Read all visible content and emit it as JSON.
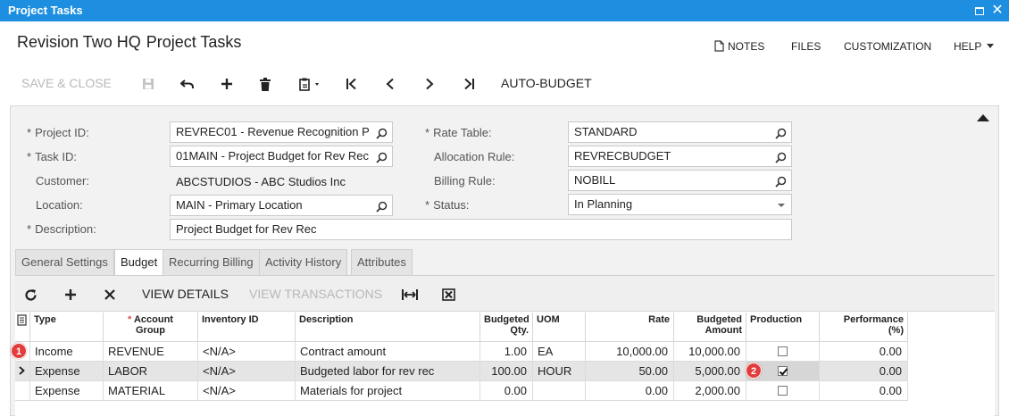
{
  "window": {
    "title": "Project Tasks"
  },
  "header": {
    "title_part1": "Revision Two HQ",
    "title_part2": "Project Tasks",
    "links": {
      "notes": "NOTES",
      "files": "FILES",
      "customization": "CUSTOMIZATION",
      "help": "HELP"
    }
  },
  "toolbar": {
    "save_close": "SAVE & CLOSE",
    "auto_budget": "AUTO-BUDGET"
  },
  "form": {
    "project_id_label": "Project ID:",
    "project_id_value": "REVREC01 - Revenue Recognition P",
    "task_id_label": "Task ID:",
    "task_id_value": "01MAIN - Project Budget for Rev Rec",
    "customer_label": "Customer:",
    "customer_value": "ABCSTUDIOS - ABC Studios Inc",
    "location_label": "Location:",
    "location_value": "MAIN - Primary Location",
    "description_label": "Description:",
    "description_value": "Project Budget for Rev Rec",
    "rate_table_label": "Rate Table:",
    "rate_table_value": "STANDARD",
    "allocation_rule_label": "Allocation Rule:",
    "allocation_rule_value": "REVRECBUDGET",
    "billing_rule_label": "Billing Rule:",
    "billing_rule_value": "NOBILL",
    "status_label": "Status:",
    "status_value": "In Planning"
  },
  "tabs": [
    "General Settings",
    "Budget",
    "Recurring Billing",
    "Activity History",
    "Attributes"
  ],
  "active_tab": "Budget",
  "grid_toolbar": {
    "view_details": "VIEW DETAILS",
    "view_transactions": "VIEW TRANSACTIONS"
  },
  "grid": {
    "headers": {
      "type": "Type",
      "account_group_1": "Account",
      "account_group_2": "Group",
      "inventory_id": "Inventory ID",
      "description": "Description",
      "budgeted_qty_1": "Budgeted",
      "budgeted_qty_2": "Qty.",
      "uom": "UOM",
      "rate": "Rate",
      "budgeted_amount_1": "Budgeted",
      "budgeted_amount_2": "Amount",
      "production": "Production",
      "performance_1": "Performance",
      "performance_2": "(%)"
    },
    "rows": [
      {
        "type": "Income",
        "account_group": "REVENUE",
        "inventory_id": "<N/A>",
        "description": "Contract amount",
        "qty": "1.00",
        "uom": "EA",
        "rate": "10,000.00",
        "amount": "10,000.00",
        "production": false,
        "performance": "0.00"
      },
      {
        "type": "Expense",
        "account_group": "LABOR",
        "inventory_id": "<N/A>",
        "description": "Budgeted labor for rev rec",
        "qty": "100.00",
        "uom": "HOUR",
        "rate": "50.00",
        "amount": "5,000.00",
        "production": true,
        "performance": "0.00"
      },
      {
        "type": "Expense",
        "account_group": "MATERIAL",
        "inventory_id": "<N/A>",
        "description": "Materials for project",
        "qty": "0.00",
        "uom": "",
        "rate": "0.00",
        "amount": "2,000.00",
        "production": false,
        "performance": "0.00"
      }
    ],
    "selected_row": 1
  },
  "markers": [
    "1",
    "2"
  ]
}
